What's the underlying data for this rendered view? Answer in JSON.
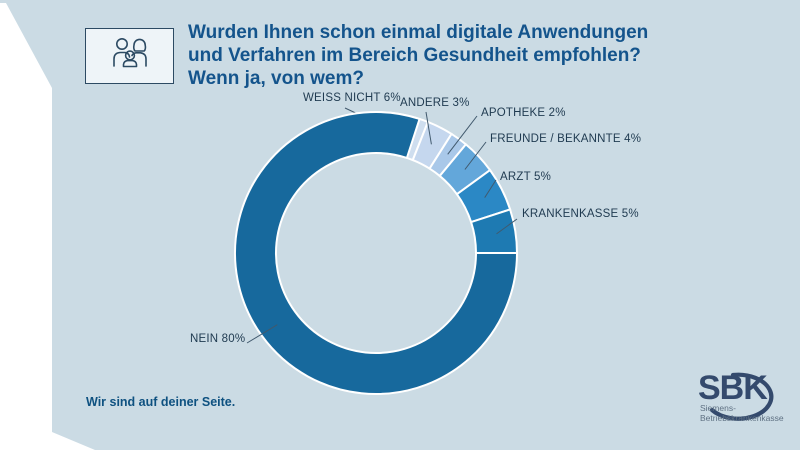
{
  "colors": {
    "panel_background": "#cbdbe4",
    "title_text": "#14548c",
    "label_text": "#1f3a50",
    "leader_line": "#41596d",
    "separator": "#ffffff",
    "logo_navy": "#344a6d"
  },
  "header": {
    "title": "Wurden Ihnen schon einmal digitale Anwendungen und Verfahren im Bereich Gesundheit empfohlen? Wenn ja, von wem?",
    "icon": "family-icon"
  },
  "chart_data": {
    "type": "pie",
    "variant": "donut",
    "title": "Wurden Ihnen schon einmal digitale Anwendungen und Verfahren im Bereich Gesundheit empfohlen? Wenn ja, von wem?",
    "start_angle_deg": 0,
    "direction": "clockwise",
    "unit": "%",
    "segments": [
      {
        "label": "WEISS NICHT",
        "value": 6,
        "display": "WEISS NICHT 6%",
        "color": "#cfdeef"
      },
      {
        "label": "ANDERE",
        "value": 3,
        "display": "ANDERE 3%",
        "color": "#c5d7ee"
      },
      {
        "label": "APOTHEKE",
        "value": 2,
        "display": "APOTHEKE 2%",
        "color": "#a9c8e9"
      },
      {
        "label": "FREUNDE / BEKANNTE",
        "value": 4,
        "display": "FREUNDE / BEKANNTE 4%",
        "color": "#63a7da"
      },
      {
        "label": "ARZT",
        "value": 5,
        "display": "ARZT 5%",
        "color": "#2b88c5"
      },
      {
        "label": "KRANKENKASSE",
        "value": 5,
        "display": "KRANKENKASSE 5%",
        "color": "#1e7ab2"
      },
      {
        "label": "NEIN",
        "value": 80,
        "display": "NEIN 80%",
        "color": "#17699d"
      }
    ]
  },
  "footer": {
    "tagline": "Wir sind auf deiner Seite."
  },
  "logo": {
    "word": "SBK",
    "subtitle_line1": "Siemens-",
    "subtitle_line2": "Betriebskrankenkasse"
  }
}
